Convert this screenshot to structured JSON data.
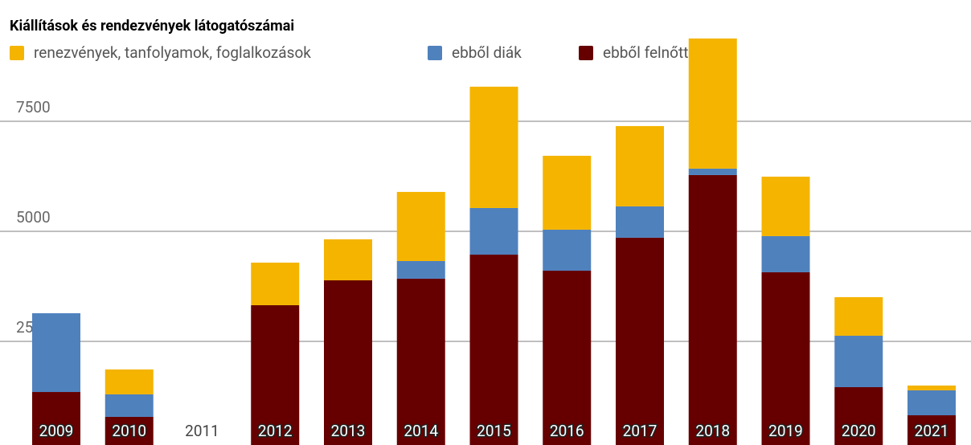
{
  "chart_data": {
    "type": "stacked_bar",
    "title": "Kiállítások és rendezvények látogatószámai",
    "categories": [
      "2009",
      "2010",
      "2011",
      "2012",
      "2013",
      "2014",
      "2015",
      "2016",
      "2017",
      "2018",
      "2019",
      "2020",
      "2021"
    ],
    "series": [
      {
        "name": "ebből felnőtt",
        "color": "#660000",
        "values": [
          1350,
          785,
          0,
          3322,
          3887,
          3924,
          4471,
          4106,
          4855,
          6278,
          4070,
          1460,
          821
        ]
      },
      {
        "name": "ebből diák",
        "color": "#4f81bd",
        "values": [
          1790,
          511,
          0,
          0,
          0,
          401,
          1059,
          931,
          711,
          146,
          821,
          1168,
          566
        ]
      },
      {
        "name": "renezvények, tanfolyamok, foglalkozások",
        "color": "#f4b400",
        "values": [
          0,
          566,
          0,
          967,
          931,
          1570,
          2756,
          1679,
          1825,
          2957,
          1351,
          876,
          110
        ]
      }
    ],
    "ylim": [
      146,
      10255
    ],
    "yticks": [
      2500,
      5000,
      7500
    ],
    "grid": true
  }
}
